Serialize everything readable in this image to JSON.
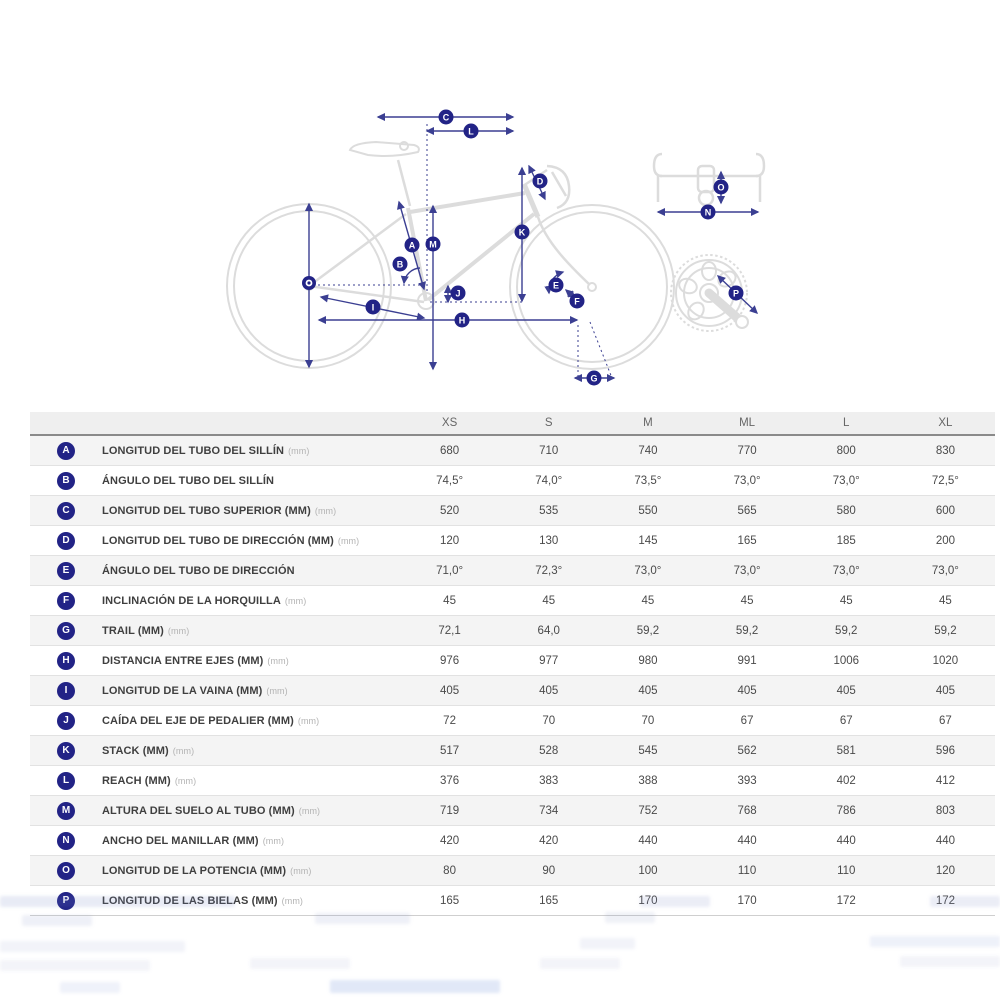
{
  "diagram": {
    "markers": {
      "a": "A",
      "b": "B",
      "c": "C",
      "d": "D",
      "e": "E",
      "f": "F",
      "g": "G",
      "h": "H",
      "i": "I",
      "j": "J",
      "k": "K",
      "l": "L",
      "m": "M",
      "n": "N",
      "o": "O",
      "p": "P"
    }
  },
  "colors": {
    "accent_navy": "#222386",
    "arrow_navy": "#3b3f92",
    "bike_gray": "#dcdcdc",
    "header_bg": "#efefef",
    "row_alt_bg": "#f4f4f4"
  },
  "chart_data": {
    "type": "table",
    "title": "",
    "columns": [
      "XS",
      "S",
      "M",
      "ML",
      "L",
      "XL"
    ],
    "rows": [
      {
        "letter": "A",
        "label": "LONGITUD DEL TUBO DEL SILLÍN",
        "unit": "(mm)",
        "values": [
          "680",
          "710",
          "740",
          "770",
          "800",
          "830"
        ]
      },
      {
        "letter": "B",
        "label": "ÁNGULO DEL TUBO DEL SILLÍN",
        "unit": "",
        "values": [
          "74,5°",
          "74,0°",
          "73,5°",
          "73,0°",
          "73,0°",
          "72,5°"
        ]
      },
      {
        "letter": "C",
        "label": "LONGITUD DEL TUBO SUPERIOR (MM)",
        "unit": "(mm)",
        "values": [
          "520",
          "535",
          "550",
          "565",
          "580",
          "600"
        ]
      },
      {
        "letter": "D",
        "label": "LONGITUD DEL TUBO DE DIRECCIÓN (MM)",
        "unit": "(mm)",
        "values": [
          "120",
          "130",
          "145",
          "165",
          "185",
          "200"
        ]
      },
      {
        "letter": "E",
        "label": "ÁNGULO DEL TUBO DE DIRECCIÓN",
        "unit": "",
        "values": [
          "71,0°",
          "72,3°",
          "73,0°",
          "73,0°",
          "73,0°",
          "73,0°"
        ]
      },
      {
        "letter": "F",
        "label": "INCLINACIÓN DE LA HORQUILLA",
        "unit": "(mm)",
        "values": [
          "45",
          "45",
          "45",
          "45",
          "45",
          "45"
        ]
      },
      {
        "letter": "G",
        "label": "TRAIL (MM)",
        "unit": "(mm)",
        "values": [
          "72,1",
          "64,0",
          "59,2",
          "59,2",
          "59,2",
          "59,2"
        ]
      },
      {
        "letter": "H",
        "label": "DISTANCIA ENTRE EJES (MM)",
        "unit": "(mm)",
        "values": [
          "976",
          "977",
          "980",
          "991",
          "1006",
          "1020"
        ]
      },
      {
        "letter": "I",
        "label": "LONGITUD DE LA VAINA (MM)",
        "unit": "(mm)",
        "values": [
          "405",
          "405",
          "405",
          "405",
          "405",
          "405"
        ]
      },
      {
        "letter": "J",
        "label": "CAÍDA DEL EJE DE PEDALIER (MM)",
        "unit": "(mm)",
        "values": [
          "72",
          "70",
          "70",
          "67",
          "67",
          "67"
        ]
      },
      {
        "letter": "K",
        "label": "STACK (MM)",
        "unit": "(mm)",
        "values": [
          "517",
          "528",
          "545",
          "562",
          "581",
          "596"
        ]
      },
      {
        "letter": "L",
        "label": "REACH (MM)",
        "unit": "(mm)",
        "values": [
          "376",
          "383",
          "388",
          "393",
          "402",
          "412"
        ]
      },
      {
        "letter": "M",
        "label": "ALTURA DEL SUELO AL TUBO (MM)",
        "unit": "(mm)",
        "values": [
          "719",
          "734",
          "752",
          "768",
          "786",
          "803"
        ]
      },
      {
        "letter": "N",
        "label": "ANCHO DEL MANILLAR (MM)",
        "unit": "(mm)",
        "values": [
          "420",
          "420",
          "440",
          "440",
          "440",
          "440"
        ]
      },
      {
        "letter": "O",
        "label": "LONGITUD DE LA POTENCIA (MM)",
        "unit": "(mm)",
        "values": [
          "80",
          "90",
          "100",
          "110",
          "110",
          "120"
        ]
      },
      {
        "letter": "P",
        "label": "LONGITUD DE LAS BIELAS (MM)",
        "unit": "(mm)",
        "values": [
          "165",
          "165",
          "170",
          "170",
          "172",
          "172"
        ]
      }
    ]
  }
}
